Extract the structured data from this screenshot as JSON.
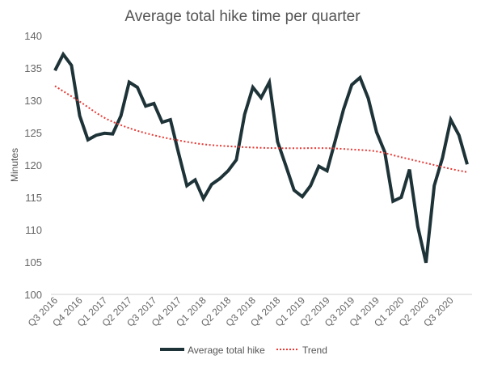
{
  "chart_data": {
    "type": "line",
    "title": "Average total hike time per quarter",
    "xlabel": "",
    "ylabel": "Minutes",
    "ylim": [
      100,
      140
    ],
    "yticks": [
      100,
      105,
      110,
      115,
      120,
      125,
      130,
      135,
      140
    ],
    "grid": false,
    "legend_position": "bottom",
    "x_tick_labels": [
      "Q3 2016",
      "Q4 2016",
      "Q1 2017",
      "Q2 2017",
      "Q3 2017",
      "Q4 2017",
      "Q1 2018",
      "Q2 2018",
      "Q3 2018",
      "Q4 2018",
      "Q1 2019",
      "Q2 2019",
      "Q3 2019",
      "Q4 2019",
      "Q1 2020",
      "Q2 2020",
      "Q3 2020"
    ],
    "series": [
      {
        "name": "Average total hike",
        "color": "#1e3338",
        "style": "solid",
        "values": [
          134.6,
          137.1,
          135.4,
          127.6,
          123.9,
          124.6,
          124.9,
          124.8,
          127.6,
          132.8,
          132.0,
          129.1,
          129.5,
          126.6,
          127.0,
          121.8,
          116.8,
          117.7,
          114.8,
          117.0,
          117.9,
          119.1,
          120.8,
          127.8,
          132.0,
          130.4,
          132.8,
          123.6,
          119.9,
          116.1,
          115.1,
          116.8,
          119.8,
          119.1,
          123.8,
          128.6,
          132.4,
          133.5,
          130.3,
          125.1,
          122.0,
          114.4,
          115.0,
          119.3,
          110.5,
          104.9,
          116.8,
          121.1,
          127.0,
          124.6,
          120.1
        ]
      },
      {
        "name": "Trend",
        "color": "#e53935",
        "style": "dotted",
        "values_at_ticks": [
          132.2,
          129.8,
          127.3,
          125.7,
          124.6,
          123.8,
          123.2,
          122.9,
          122.7,
          122.6,
          122.6,
          122.6,
          122.4,
          122.1,
          121.2,
          120.3,
          119.4
        ],
        "end_value": 118.9
      }
    ]
  }
}
